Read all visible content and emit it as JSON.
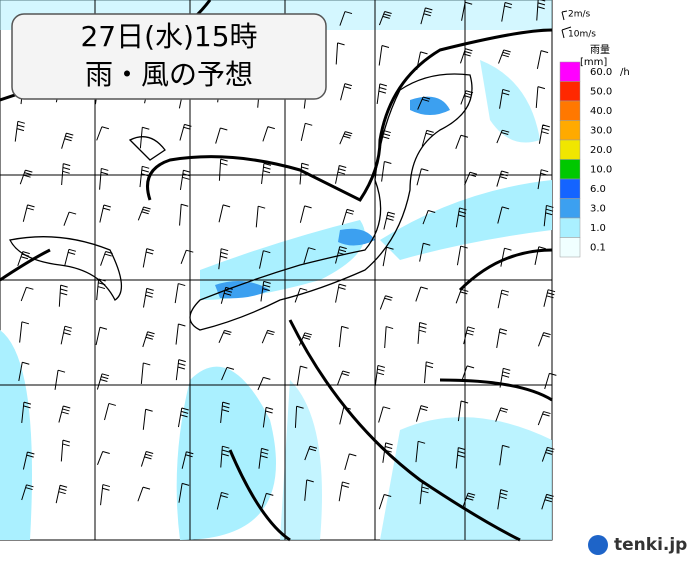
{
  "header": {
    "title_line1": "27日(水)15時",
    "title_line2": "雨・風の予想"
  },
  "wind_legend": {
    "small": "2m/s",
    "large": "10m/s"
  },
  "rain_legend": {
    "title": "雨量",
    "unit": "[mm]",
    "per": "/h",
    "levels": [
      {
        "label": "60.0",
        "color": "#ff00ff"
      },
      {
        "label": "50.0",
        "color": "#ff2800"
      },
      {
        "label": "40.0",
        "color": "#ff7800"
      },
      {
        "label": "30.0",
        "color": "#ffaa00"
      },
      {
        "label": "20.0",
        "color": "#f0e600"
      },
      {
        "label": "10.0",
        "color": "#00c800"
      },
      {
        "label": "6.0",
        "color": "#1464ff"
      },
      {
        "label": "3.0",
        "color": "#3ca0f0"
      },
      {
        "label": "1.0",
        "color": "#aaf0ff"
      },
      {
        "label": "0.1",
        "color": "#f0ffff"
      }
    ]
  },
  "logo": {
    "text": "tenki.jp"
  }
}
